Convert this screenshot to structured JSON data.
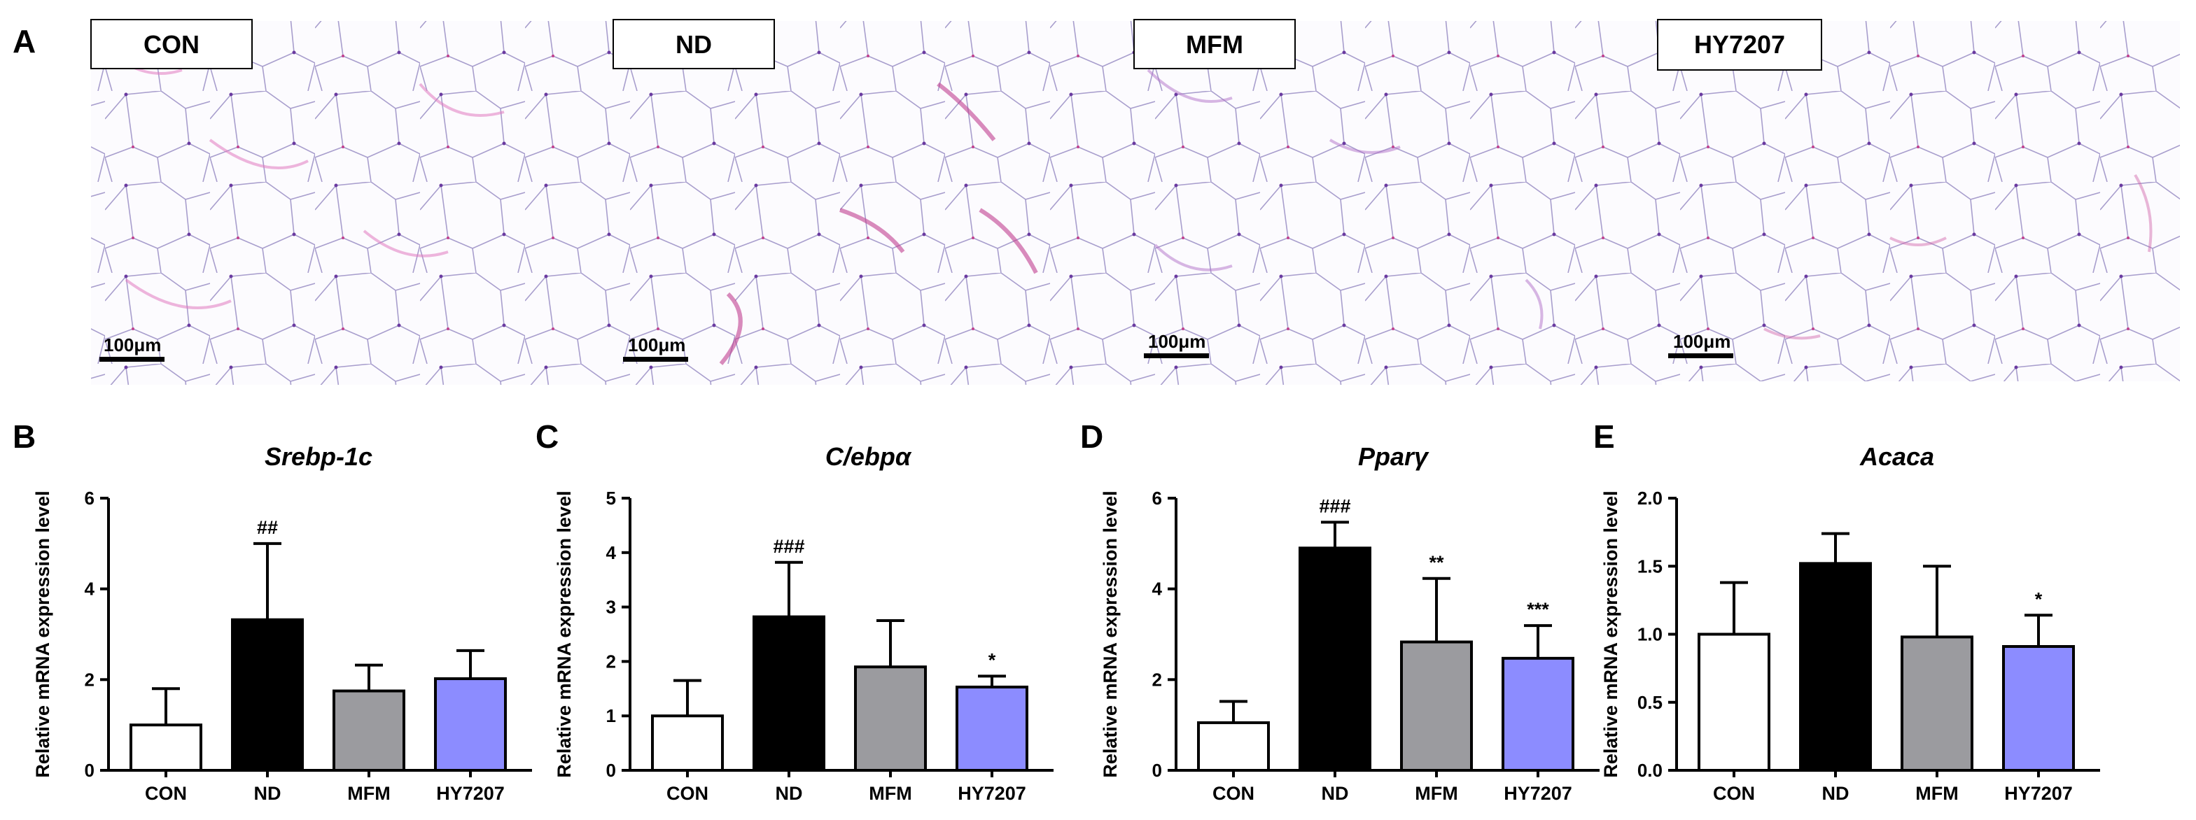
{
  "panel_a": {
    "letter": "A",
    "tiles": [
      {
        "label": "CON",
        "scale_bar": "100μm"
      },
      {
        "label": "ND",
        "scale_bar": "100μm"
      },
      {
        "label": "MFM",
        "scale_bar": "100μm"
      },
      {
        "label": "HY7207",
        "scale_bar": "100μm"
      }
    ]
  },
  "colors": {
    "CON": "#ffffff",
    "ND": "#000000",
    "MFM": "#9b9b9f",
    "HY7207": "#8c8cff"
  },
  "chart_data": [
    {
      "letter": "B",
      "type": "bar",
      "title": "Srebp-1c",
      "ylabel": "Relative mRNA expression level",
      "xlabel": "",
      "ylim": [
        0,
        6
      ],
      "yticks": [
        0,
        2,
        4,
        6
      ],
      "tick_format": "int",
      "categories": [
        "CON",
        "ND",
        "MFM",
        "HY7207"
      ],
      "values": [
        1.0,
        3.32,
        1.75,
        2.02
      ],
      "errors": [
        0.8,
        1.68,
        0.57,
        0.62
      ],
      "significance": [
        "",
        "##",
        "",
        ""
      ]
    },
    {
      "letter": "C",
      "type": "bar",
      "title": "C/ebpα",
      "ylabel": "Relative mRNA expression level",
      "xlabel": "",
      "ylim": [
        0,
        5
      ],
      "yticks": [
        0,
        1,
        2,
        3,
        4,
        5
      ],
      "tick_format": "int",
      "categories": [
        "CON",
        "ND",
        "MFM",
        "HY7207"
      ],
      "values": [
        1.0,
        2.82,
        1.9,
        1.53
      ],
      "errors": [
        0.65,
        1.0,
        0.85,
        0.2
      ],
      "significance": [
        "",
        "###",
        "",
        "*"
      ]
    },
    {
      "letter": "D",
      "type": "bar",
      "title": "Pparγ",
      "ylabel": "Relative mRNA expression level",
      "xlabel": "",
      "ylim": [
        0,
        6
      ],
      "yticks": [
        0,
        2,
        4,
        6
      ],
      "tick_format": "int",
      "categories": [
        "CON",
        "ND",
        "MFM",
        "HY7207"
      ],
      "values": [
        1.05,
        4.9,
        2.83,
        2.47
      ],
      "errors": [
        0.47,
        0.57,
        1.4,
        0.72
      ],
      "significance": [
        "",
        "###",
        "**",
        "***"
      ]
    },
    {
      "letter": "E",
      "type": "bar",
      "title": "Acaca",
      "ylabel": "Relative mRNA expression level",
      "xlabel": "",
      "ylim": [
        0,
        2
      ],
      "yticks": [
        0,
        0.5,
        1,
        1.5,
        2
      ],
      "tick_format": "1dp",
      "categories": [
        "CON",
        "ND",
        "MFM",
        "HY7207"
      ],
      "values": [
        1.0,
        1.52,
        0.98,
        0.91
      ],
      "errors": [
        0.38,
        0.22,
        0.52,
        0.23
      ],
      "significance": [
        "",
        "",
        "",
        "*"
      ]
    }
  ]
}
